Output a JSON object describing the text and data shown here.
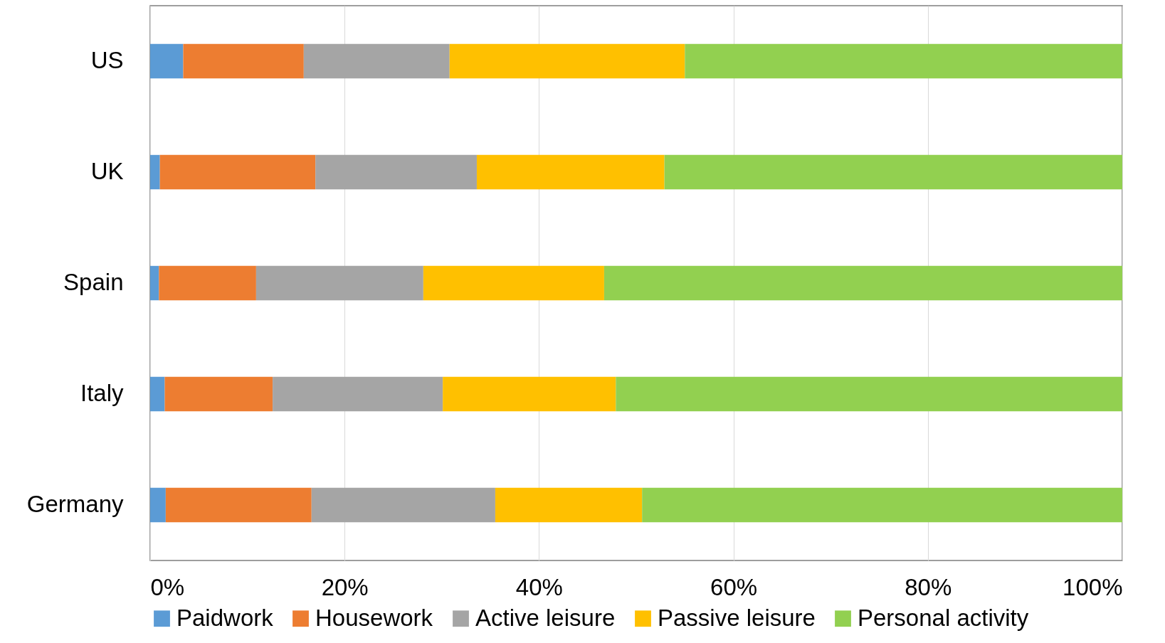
{
  "chart_data": {
    "type": "bar",
    "orientation": "horizontal",
    "stacked": true,
    "categories": [
      "US",
      "UK",
      "Spain",
      "Italy",
      "Germany"
    ],
    "series": [
      {
        "name": "Paidwork",
        "color": "#5b9bd5",
        "values": [
          3.4,
          1.0,
          0.9,
          1.5,
          1.6
        ]
      },
      {
        "name": "Housework",
        "color": "#ed7d31",
        "values": [
          12.4,
          16.0,
          10.0,
          11.1,
          15.0
        ]
      },
      {
        "name": "Active leisure",
        "color": "#a5a5a5",
        "values": [
          15.0,
          16.6,
          17.2,
          17.5,
          18.9
        ]
      },
      {
        "name": "Passive leisure",
        "color": "#ffc000",
        "values": [
          24.2,
          19.3,
          18.6,
          17.8,
          15.1
        ]
      },
      {
        "name": "Personal activity",
        "color": "#92d050",
        "values": [
          45.0,
          47.1,
          53.3,
          52.1,
          49.4
        ]
      }
    ],
    "xlim": [
      0,
      100
    ],
    "xticks": [
      {
        "value": 0,
        "label": "0%"
      },
      {
        "value": 20,
        "label": "20%"
      },
      {
        "value": 40,
        "label": "40%"
      },
      {
        "value": 60,
        "label": "60%"
      },
      {
        "value": 80,
        "label": "80%"
      },
      {
        "value": 100,
        "label": "100%"
      }
    ],
    "grid": "x",
    "legend": "bottom"
  }
}
